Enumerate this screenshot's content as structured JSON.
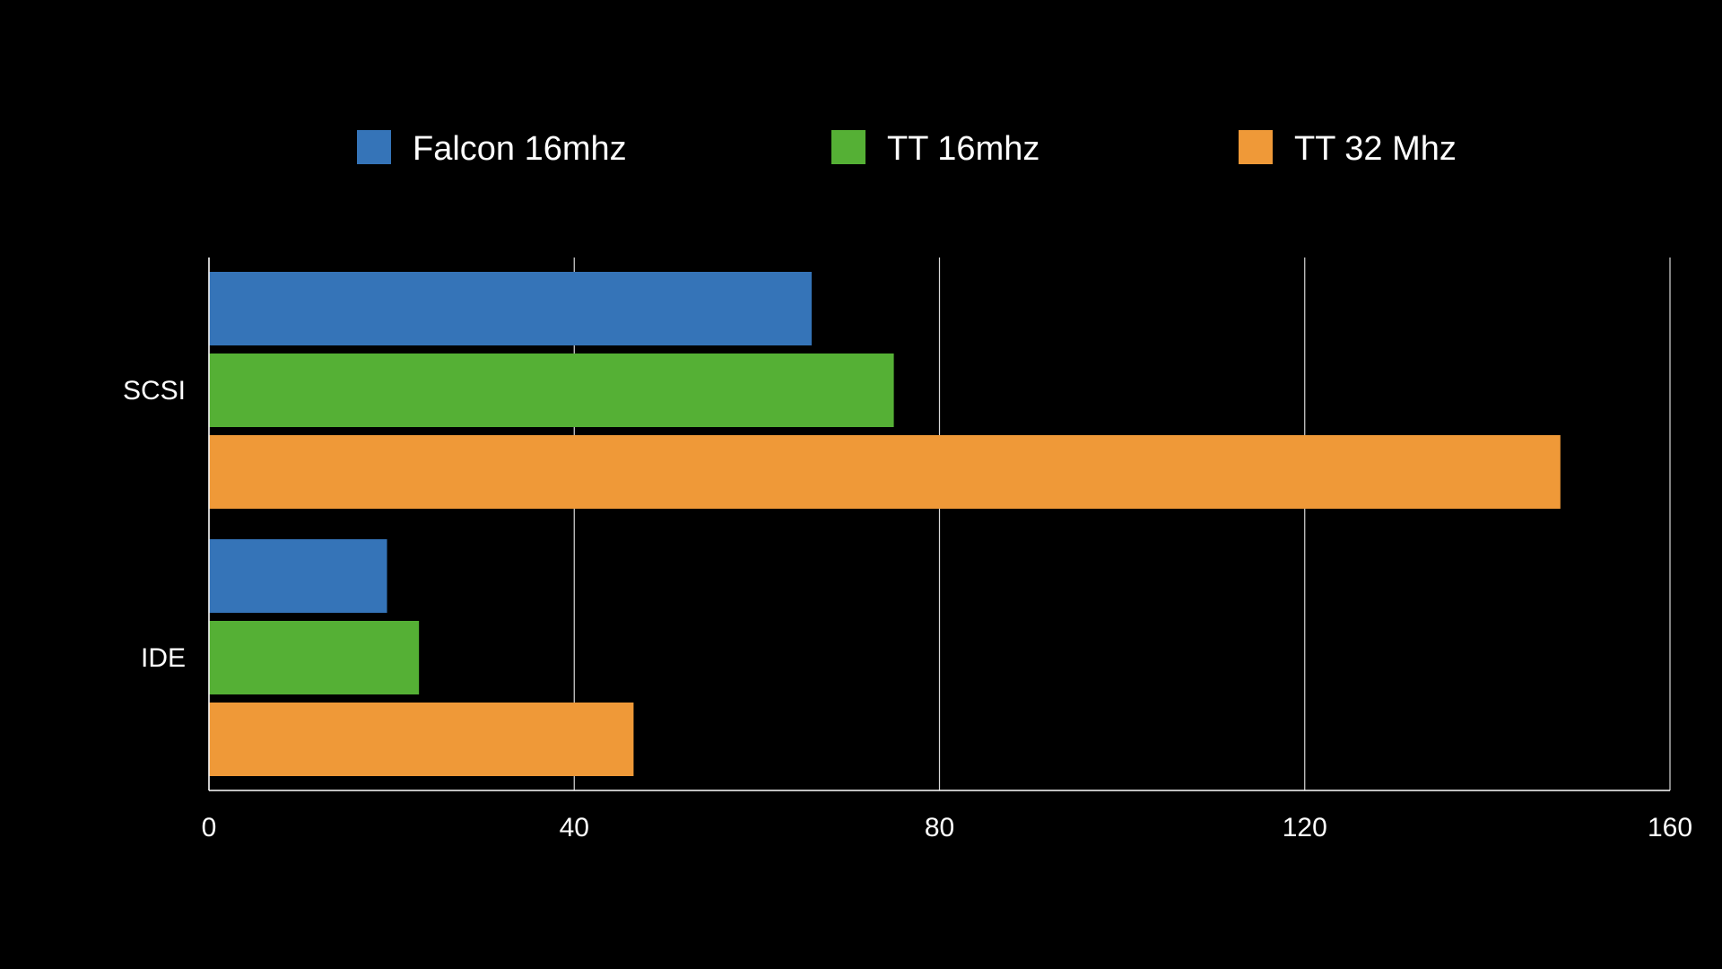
{
  "chart_data": {
    "type": "bar",
    "orientation": "horizontal",
    "categories": [
      "SCSI",
      "IDE"
    ],
    "series": [
      {
        "name": "Falcon 16mhz",
        "color": "#3574b8",
        "values": [
          66,
          19.5
        ]
      },
      {
        "name": "TT 16mhz",
        "color": "#55b035",
        "values": [
          75,
          23
        ]
      },
      {
        "name": "TT 32 Mhz",
        "color": "#ef9938",
        "values": [
          148,
          46.5
        ]
      }
    ],
    "xlim": [
      0,
      160
    ],
    "xticks": [
      0,
      40,
      80,
      120,
      160
    ],
    "xtick_labels": [
      "0",
      "40",
      "80",
      "120",
      "160"
    ],
    "grid": true,
    "legend_position": "top",
    "background": "#000000",
    "grid_color": "#ffffff"
  }
}
